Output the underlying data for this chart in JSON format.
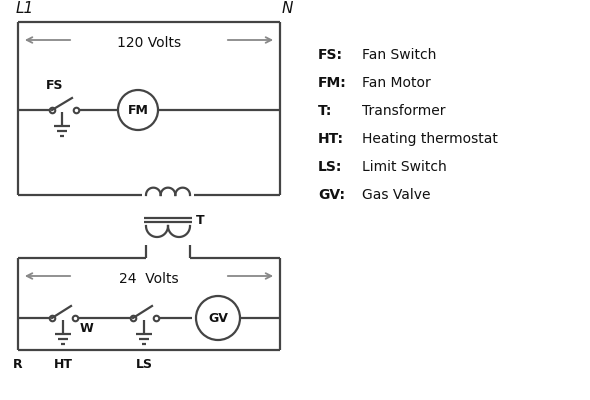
{
  "bg_color": "#ffffff",
  "line_color": "#444444",
  "arrow_color": "#888888",
  "text_color": "#111111",
  "legend": {
    "FS": "Fan Switch",
    "FM": "Fan Motor",
    "T": "Transformer",
    "HT": "Heating thermostat",
    "LS": "Limit Switch",
    "GV": "Gas Valve"
  },
  "label_120V": "120 Volts",
  "label_24V": "24  Volts",
  "label_L1": "L1",
  "label_N": "N"
}
